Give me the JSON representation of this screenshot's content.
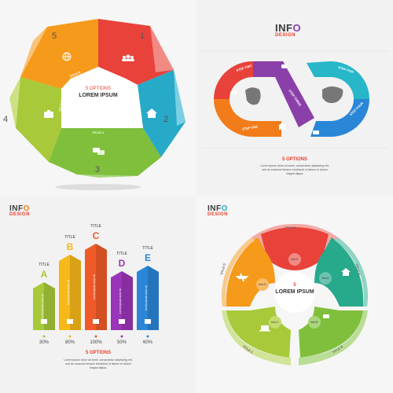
{
  "logo": {
    "text_a": "INF",
    "text_b": "O",
    "sub": "DESIGN"
  },
  "heptagon": {
    "options_label": "5 OPTIONS",
    "title": "LOREM IPSUM",
    "segments": [
      {
        "number": "1",
        "title": "TITLE A",
        "icon": "people-icon",
        "color": "#e8423b"
      },
      {
        "number": "2",
        "title": "TITLE B",
        "icon": "home-icon",
        "color": "#27a9c8"
      },
      {
        "number": "3",
        "title": "TITLE C",
        "icon": "chat-icon",
        "color": "#7fbf3c"
      },
      {
        "number": "4",
        "title": "TITLE D",
        "icon": "briefcase-icon",
        "color": "#a7c93a"
      },
      {
        "number": "5",
        "title": "TITLE E",
        "icon": "globe-icon",
        "color": "#f59a1a"
      }
    ]
  },
  "infinity": {
    "steps": [
      {
        "label": "STEP ONE",
        "color": "#f27c1a"
      },
      {
        "label": "STEP TWO",
        "color": "#e8423b"
      },
      {
        "label": "STEP THREE",
        "color": "#8b3fa8"
      },
      {
        "label": "STEP FOUR",
        "color": "#2a86d6"
      },
      {
        "label": "STEP FIVE",
        "color": "#27b7c9"
      }
    ],
    "options_label": "5 OPTIONS",
    "body": [
      "Lorem ipsum dolor sit amet, consectetur adipiscing elit,",
      "sed do eiusmod tempor incididunt ut labore et dolore",
      "magna aliqua."
    ]
  },
  "columns": {
    "items": [
      {
        "title": "TITLE",
        "letter": "A",
        "pct": "30%",
        "value": 30,
        "icon": "briefcase-icon",
        "color": "#a7c93a"
      },
      {
        "title": "TITLE",
        "letter": "B",
        "pct": "80%",
        "value": 80,
        "icon": "home-icon",
        "color": "#f7b81a"
      },
      {
        "title": "TITLE",
        "letter": "C",
        "pct": "100%",
        "value": 100,
        "icon": "people-icon",
        "color": "#ef5a28"
      },
      {
        "title": "TITLE",
        "letter": "D",
        "pct": "50%",
        "value": 50,
        "icon": "chat-icon",
        "color": "#9a35b8"
      },
      {
        "title": "TITLE",
        "letter": "E",
        "pct": "60%",
        "value": 60,
        "icon": "globe-icon",
        "color": "#2a86d6"
      }
    ],
    "bar_text": "Lorem ipsum dolor sit",
    "options_label": "5 OPTIONS",
    "body": [
      "Lorem ipsum dolor sit amet, consectetur adipiscing elit,",
      "sed do eiusmod tempor incididunt ut labore et dolore",
      "magna aliqua."
    ]
  },
  "circle": {
    "options_label": "5",
    "title": "LOREM IPSUM",
    "segments": [
      {
        "title": "TITLE A",
        "inner": "text A",
        "icon": "home-icon",
        "color": "#27a98c"
      },
      {
        "title": "TITLE B",
        "inner": "text B",
        "icon": "chat-icon",
        "color": "#7fbf3c"
      },
      {
        "title": "TITLE C",
        "inner": "text C",
        "icon": "laptop-icon",
        "color": "#a7c93a"
      },
      {
        "title": "TITLE D",
        "inner": "text D",
        "icon": "plane-icon",
        "color": "#f59a1a"
      },
      {
        "title": "TITLE E",
        "inner": "text E",
        "icon": "",
        "color": "#e8423b"
      }
    ]
  }
}
